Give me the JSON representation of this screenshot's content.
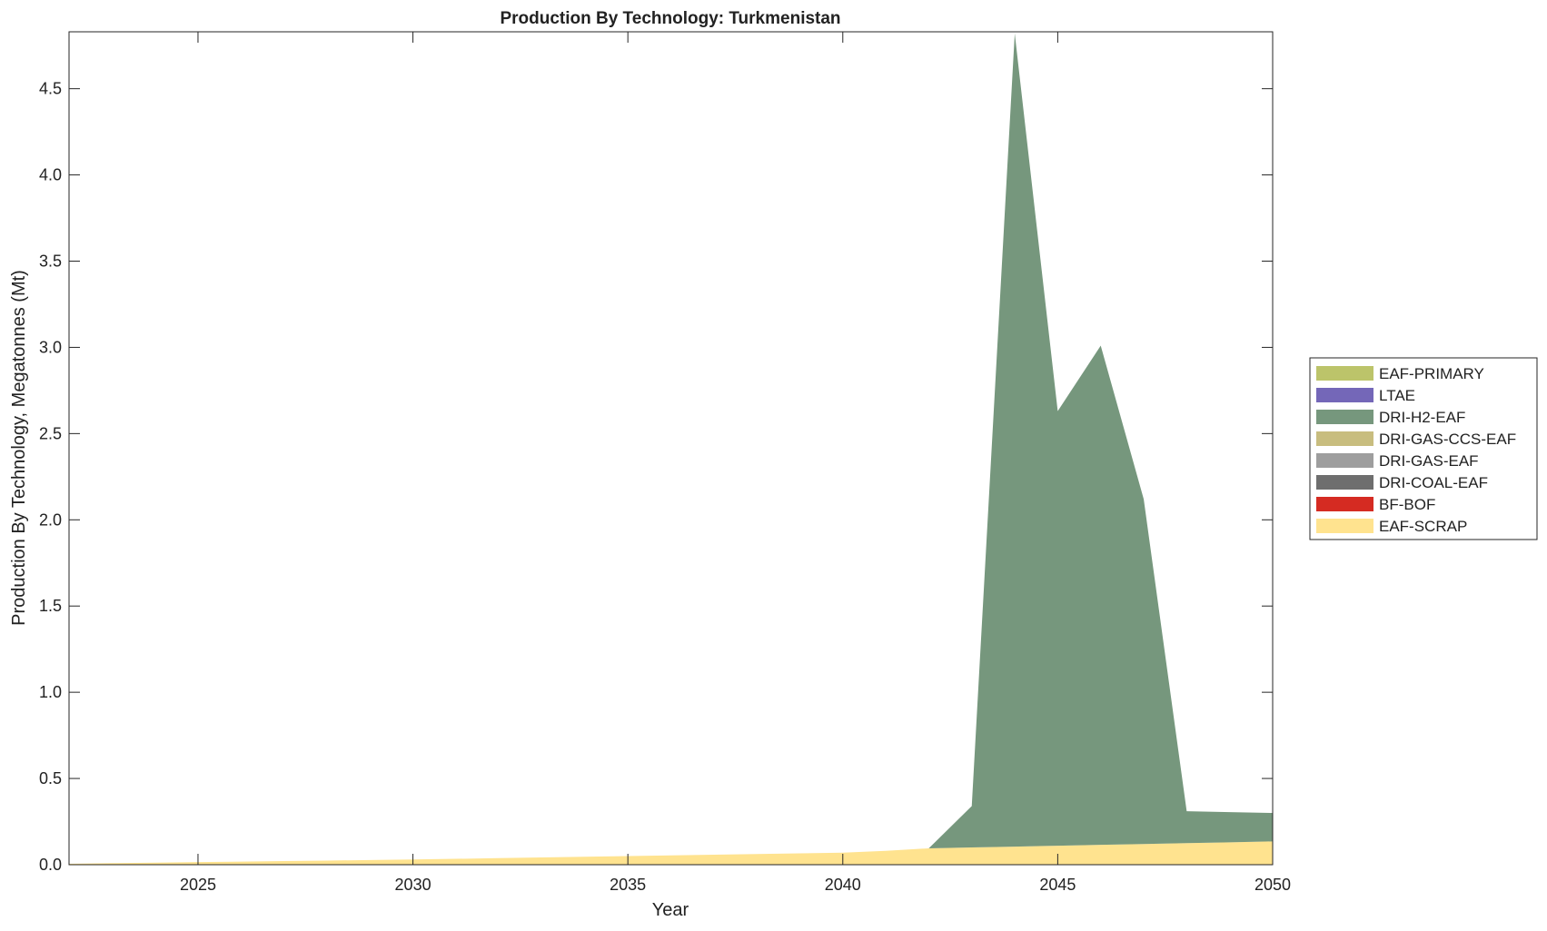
{
  "chart_data": {
    "type": "area",
    "stacked": true,
    "title": "Production By Technology: Turkmenistan",
    "xlabel": "Year",
    "ylabel": "Production By Technology, Megatonnes (Mt)",
    "xlim": [
      2022,
      2050
    ],
    "ylim": [
      0,
      4.83
    ],
    "xticks": [
      2025,
      2030,
      2035,
      2040,
      2045,
      2050
    ],
    "yticks": [
      0,
      0.5,
      1.0,
      1.5,
      2.0,
      2.5,
      3.0,
      3.5,
      4.0,
      4.5
    ],
    "ytick_labels": [
      "0.0",
      "0.5",
      "1.0",
      "1.5",
      "2.0",
      "2.5",
      "3.0",
      "3.5",
      "4.0",
      "4.5"
    ],
    "legend_position": "outside-right",
    "x": [
      2022,
      2023,
      2024,
      2025,
      2026,
      2027,
      2028,
      2029,
      2030,
      2031,
      2032,
      2033,
      2034,
      2035,
      2036,
      2037,
      2038,
      2039,
      2040,
      2041,
      2042,
      2043,
      2044,
      2045,
      2046,
      2047,
      2048,
      2049,
      2050
    ],
    "series": [
      {
        "name": "EAF-SCRAP",
        "color": "#FFE38F",
        "values": [
          0.005,
          0.009,
          0.012,
          0.015,
          0.018,
          0.021,
          0.024,
          0.027,
          0.03,
          0.034,
          0.038,
          0.042,
          0.046,
          0.05,
          0.054,
          0.058,
          0.062,
          0.066,
          0.07,
          0.08,
          0.095,
          0.1,
          0.105,
          0.11,
          0.115,
          0.12,
          0.125,
          0.13,
          0.135
        ]
      },
      {
        "name": "BF-BOF",
        "color": "#D52B22",
        "values": [
          0,
          0,
          0,
          0,
          0,
          0,
          0,
          0,
          0,
          0,
          0,
          0,
          0,
          0,
          0,
          0,
          0,
          0,
          0,
          0,
          0,
          0,
          0,
          0,
          0,
          0,
          0,
          0,
          0
        ]
      },
      {
        "name": "DRI-COAL-EAF",
        "color": "#6E6E6E",
        "values": [
          0,
          0,
          0,
          0,
          0,
          0,
          0,
          0,
          0,
          0,
          0,
          0,
          0,
          0,
          0,
          0,
          0,
          0,
          0,
          0,
          0,
          0,
          0,
          0,
          0,
          0,
          0,
          0,
          0
        ]
      },
      {
        "name": "DRI-GAS-EAF",
        "color": "#9E9E9E",
        "values": [
          0,
          0,
          0,
          0,
          0,
          0,
          0,
          0,
          0,
          0,
          0,
          0,
          0,
          0,
          0,
          0,
          0,
          0,
          0,
          0,
          0,
          0,
          0,
          0,
          0,
          0,
          0,
          0,
          0
        ]
      },
      {
        "name": "DRI-GAS-CCS-EAF",
        "color": "#C8BD7F",
        "values": [
          0,
          0,
          0,
          0,
          0,
          0,
          0,
          0,
          0,
          0,
          0,
          0,
          0,
          0,
          0,
          0,
          0,
          0,
          0,
          0,
          0,
          0,
          0,
          0,
          0,
          0,
          0,
          0,
          0
        ]
      },
      {
        "name": "DRI-H2-EAF",
        "color": "#76977D",
        "values": [
          0,
          0,
          0,
          0,
          0,
          0,
          0,
          0,
          0,
          0,
          0,
          0,
          0,
          0,
          0,
          0,
          0,
          0,
          0,
          0,
          0,
          0.24,
          4.715,
          2.52,
          2.895,
          2.0,
          0.185,
          0.175,
          0.165
        ]
      },
      {
        "name": "LTAE",
        "color": "#7467B8",
        "values": [
          0,
          0,
          0,
          0,
          0,
          0,
          0,
          0,
          0,
          0,
          0,
          0,
          0,
          0,
          0,
          0,
          0,
          0,
          0,
          0,
          0,
          0,
          0,
          0,
          0,
          0,
          0,
          0,
          0
        ]
      },
      {
        "name": "EAF-PRIMARY",
        "color": "#BCC46A",
        "values": [
          0,
          0,
          0,
          0,
          0,
          0,
          0,
          0,
          0,
          0,
          0,
          0,
          0,
          0,
          0,
          0,
          0,
          0,
          0,
          0,
          0,
          0,
          0,
          0,
          0,
          0,
          0,
          0,
          0
        ]
      }
    ]
  }
}
